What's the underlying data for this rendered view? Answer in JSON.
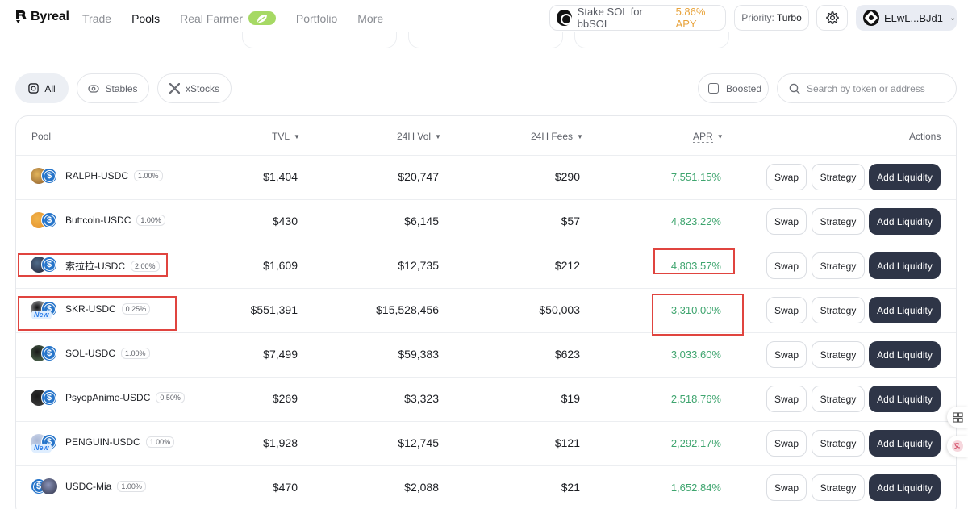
{
  "brand": {
    "name": "Byreal"
  },
  "nav": [
    {
      "label": "Trade",
      "active": false
    },
    {
      "label": "Pools",
      "active": true
    },
    {
      "label": "Real Farmer",
      "active": false
    },
    {
      "label": "Portfolio",
      "active": false
    },
    {
      "label": "More",
      "active": false
    }
  ],
  "header": {
    "stake_label": "Stake SOL for bbSOL",
    "stake_apy": "5.86% APY",
    "priority_label": "Priority:",
    "priority_value": "Turbo",
    "wallet_address": "ELwL...BJd1"
  },
  "filters": {
    "chips": [
      {
        "label": "All",
        "icon": "all-icon",
        "active": true
      },
      {
        "label": "Stables",
        "icon": "stables-icon",
        "active": false
      },
      {
        "label": "xStocks",
        "icon": "xstocks-icon",
        "active": false
      }
    ],
    "boosted_label": "Boosted",
    "search_placeholder": "Search by token or address"
  },
  "table": {
    "columns": {
      "pool": "Pool",
      "tvl": "TVL",
      "vol": "24H Vol",
      "fees": "24H Fees",
      "apr": "APR",
      "actions": "Actions"
    },
    "actions": {
      "swap": "Swap",
      "strategy": "Strategy",
      "add": "Add Liquidity"
    },
    "rows": [
      {
        "pool": "RALPH-USDC",
        "fee": "1.00%",
        "tvl": "$1,404",
        "vol": "$20,747",
        "fees": "$290",
        "apr": "7,551.15%",
        "new": false
      },
      {
        "pool": "Buttcoin-USDC",
        "fee": "1.00%",
        "tvl": "$430",
        "vol": "$6,145",
        "fees": "$57",
        "apr": "4,823.22%",
        "new": false
      },
      {
        "pool": "索拉拉-USDC",
        "fee": "2.00%",
        "tvl": "$1,609",
        "vol": "$12,735",
        "fees": "$212",
        "apr": "4,803.57%",
        "new": false
      },
      {
        "pool": "SKR-USDC",
        "fee": "0.25%",
        "tvl": "$551,391",
        "vol": "$15,528,456",
        "fees": "$50,003",
        "apr": "3,310.00%",
        "new": true
      },
      {
        "pool": "SOL-USDC",
        "fee": "1.00%",
        "tvl": "$7,499",
        "vol": "$59,383",
        "fees": "$623",
        "apr": "3,033.60%",
        "new": false
      },
      {
        "pool": "PsyopAnime-USDC",
        "fee": "0.50%",
        "tvl": "$269",
        "vol": "$3,323",
        "fees": "$19",
        "apr": "2,518.76%",
        "new": false
      },
      {
        "pool": "PENGUIN-USDC",
        "fee": "1.00%",
        "tvl": "$1,928",
        "vol": "$12,745",
        "fees": "$121",
        "apr": "2,292.17%",
        "new": true
      },
      {
        "pool": "USDC-Mia",
        "fee": "1.00%",
        "tvl": "$470",
        "vol": "$2,088",
        "fees": "$21",
        "apr": "1,652.84%",
        "new": false
      }
    ],
    "new_tag": "New"
  },
  "colors": {
    "accent_apr": "#3fa56f",
    "stake_apy": "#e8a33b",
    "add_button": "#2e3547",
    "highlight": "#e0443f"
  }
}
